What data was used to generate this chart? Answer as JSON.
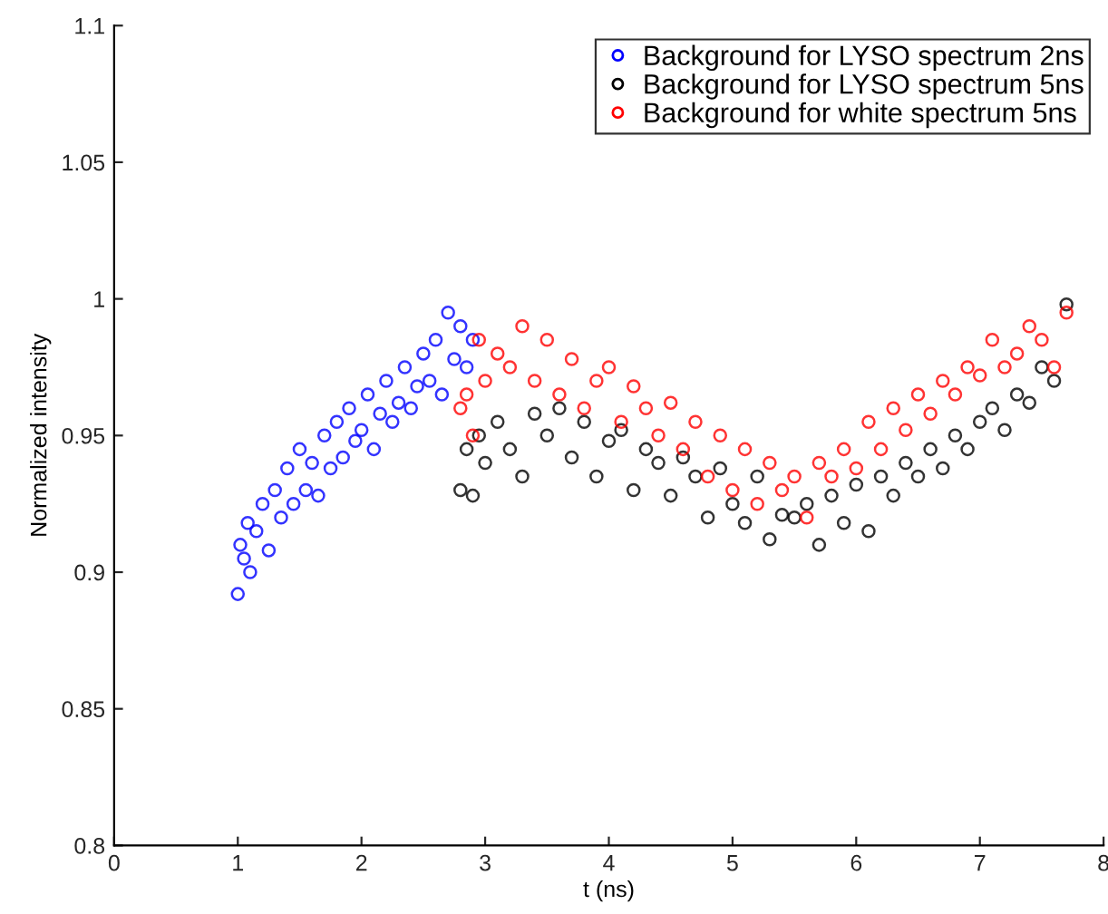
{
  "chart_data": {
    "type": "scatter",
    "xlabel": "t (ns)",
    "ylabel": "Normalized intensity",
    "xlim": [
      0,
      8
    ],
    "ylim": [
      0.8,
      1.1
    ],
    "xticks": [
      0,
      1,
      2,
      3,
      4,
      5,
      6,
      7,
      8
    ],
    "yticks": [
      {
        "value": 0.8,
        "label": "0.8"
      },
      {
        "value": 0.85,
        "label": "0.85"
      },
      {
        "value": 0.9,
        "label": "0.9"
      },
      {
        "value": 0.95,
        "label": "0.95"
      },
      {
        "value": 1,
        "label": "1"
      },
      {
        "value": 1.05,
        "label": "1.05"
      },
      {
        "value": 1.1,
        "label": "1.1"
      }
    ],
    "grid": false,
    "legend": "top right",
    "marker": "circle",
    "series": [
      {
        "name": "Background for LYSO spectrum 2ns",
        "color": "#0000ff",
        "x": [
          1.0,
          1.02,
          1.05,
          1.08,
          1.1,
          1.15,
          1.2,
          1.25,
          1.3,
          1.35,
          1.4,
          1.45,
          1.5,
          1.55,
          1.6,
          1.65,
          1.7,
          1.75,
          1.8,
          1.85,
          1.9,
          1.95,
          2.0,
          2.05,
          2.1,
          2.15,
          2.2,
          2.25,
          2.3,
          2.35,
          2.4,
          2.45,
          2.5,
          2.55,
          2.6,
          2.65,
          2.7,
          2.75,
          2.8,
          2.85,
          2.9
        ],
        "values": [
          0.892,
          0.91,
          0.905,
          0.918,
          0.9,
          0.915,
          0.925,
          0.908,
          0.93,
          0.92,
          0.938,
          0.925,
          0.945,
          0.93,
          0.94,
          0.928,
          0.95,
          0.938,
          0.955,
          0.942,
          0.96,
          0.948,
          0.952,
          0.965,
          0.945,
          0.958,
          0.97,
          0.955,
          0.962,
          0.975,
          0.96,
          0.968,
          0.98,
          0.97,
          0.985,
          0.965,
          0.995,
          0.978,
          0.99,
          0.975,
          0.985
        ]
      },
      {
        "name": "Background for LYSO spectrum 5ns",
        "color": "#000000",
        "x": [
          2.8,
          2.85,
          2.9,
          2.95,
          3.0,
          3.1,
          3.2,
          3.3,
          3.4,
          3.5,
          3.6,
          3.7,
          3.8,
          3.9,
          4.0,
          4.1,
          4.2,
          4.3,
          4.4,
          4.5,
          4.6,
          4.7,
          4.8,
          4.9,
          5.0,
          5.1,
          5.2,
          5.3,
          5.4,
          5.5,
          5.6,
          5.7,
          5.8,
          5.9,
          6.0,
          6.1,
          6.2,
          6.3,
          6.4,
          6.5,
          6.6,
          6.7,
          6.8,
          6.9,
          7.0,
          7.1,
          7.2,
          7.3,
          7.4,
          7.5,
          7.6,
          7.7
        ],
        "values": [
          0.93,
          0.945,
          0.928,
          0.95,
          0.94,
          0.955,
          0.945,
          0.935,
          0.958,
          0.95,
          0.96,
          0.942,
          0.955,
          0.935,
          0.948,
          0.952,
          0.93,
          0.945,
          0.94,
          0.928,
          0.942,
          0.935,
          0.92,
          0.938,
          0.925,
          0.918,
          0.935,
          0.912,
          0.921,
          0.92,
          0.925,
          0.91,
          0.928,
          0.918,
          0.932,
          0.915,
          0.935,
          0.928,
          0.94,
          0.935,
          0.945,
          0.938,
          0.95,
          0.945,
          0.955,
          0.96,
          0.952,
          0.965,
          0.962,
          0.975,
          0.97,
          0.998
        ]
      },
      {
        "name": "Background for white spectrum 5ns",
        "color": "#ff0000",
        "x": [
          2.8,
          2.85,
          2.9,
          2.95,
          3.0,
          3.1,
          3.2,
          3.3,
          3.4,
          3.5,
          3.6,
          3.7,
          3.8,
          3.9,
          4.0,
          4.1,
          4.2,
          4.3,
          4.4,
          4.5,
          4.6,
          4.7,
          4.8,
          4.9,
          5.0,
          5.1,
          5.2,
          5.3,
          5.4,
          5.5,
          5.6,
          5.7,
          5.8,
          5.9,
          6.0,
          6.1,
          6.2,
          6.3,
          6.4,
          6.5,
          6.6,
          6.7,
          6.8,
          6.9,
          7.0,
          7.1,
          7.2,
          7.3,
          7.4,
          7.5,
          7.6,
          7.7
        ],
        "values": [
          0.96,
          0.965,
          0.95,
          0.985,
          0.97,
          0.98,
          0.975,
          0.99,
          0.97,
          0.985,
          0.965,
          0.978,
          0.96,
          0.97,
          0.975,
          0.955,
          0.968,
          0.96,
          0.95,
          0.962,
          0.945,
          0.955,
          0.935,
          0.95,
          0.93,
          0.945,
          0.925,
          0.94,
          0.93,
          0.935,
          0.92,
          0.94,
          0.935,
          0.945,
          0.938,
          0.955,
          0.945,
          0.96,
          0.952,
          0.965,
          0.958,
          0.97,
          0.965,
          0.975,
          0.972,
          0.985,
          0.975,
          0.98,
          0.99,
          0.985,
          0.975,
          0.995
        ]
      }
    ]
  }
}
